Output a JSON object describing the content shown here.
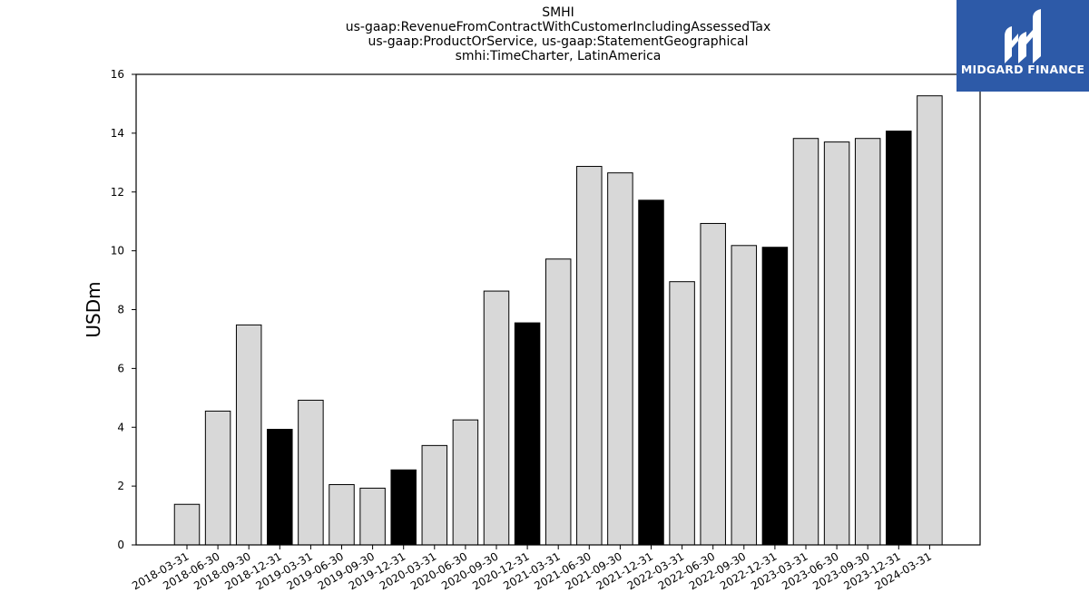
{
  "logo": {
    "text": "MIDGARD FINANCE",
    "background": "#2d5aa8",
    "foreground": "#ffffff"
  },
  "chart_data": {
    "type": "bar",
    "title_lines": [
      "SMHI",
      "us-gaap:RevenueFromContractWithCustomerIncludingAssessedTax",
      "us-gaap:ProductOrService, us-gaap:StatementGeographical",
      "smhi:TimeCharter, LatinAmerica"
    ],
    "xlabel": "",
    "ylabel": "USDm",
    "ylim": [
      0,
      16
    ],
    "yticks": [
      0,
      2,
      4,
      6,
      8,
      10,
      12,
      14,
      16
    ],
    "grid": false,
    "colors": {
      "quarter": "#d8d8d8",
      "year_end": "#000000",
      "edge": "#000000"
    },
    "categories": [
      "2018-03-31",
      "2018-06-30",
      "2018-09-30",
      "2018-12-31",
      "2019-03-31",
      "2019-06-30",
      "2019-09-30",
      "2019-12-31",
      "2020-03-31",
      "2020-06-30",
      "2020-09-30",
      "2020-12-31",
      "2021-03-31",
      "2021-06-30",
      "2021-09-30",
      "2021-12-31",
      "2022-03-31",
      "2022-06-30",
      "2022-09-30",
      "2022-12-31",
      "2023-03-31",
      "2023-06-30",
      "2023-09-30",
      "2023-12-31",
      "2024-03-31"
    ],
    "values": [
      1.38,
      4.55,
      7.48,
      3.93,
      4.92,
      2.05,
      1.93,
      2.55,
      3.38,
      4.25,
      8.63,
      7.55,
      9.72,
      12.87,
      12.65,
      11.72,
      8.95,
      10.93,
      10.18,
      10.12,
      13.82,
      13.7,
      13.82,
      14.07,
      15.27
    ],
    "year_end": [
      false,
      false,
      false,
      true,
      false,
      false,
      false,
      true,
      false,
      false,
      false,
      true,
      false,
      false,
      false,
      true,
      false,
      false,
      false,
      true,
      false,
      false,
      false,
      true,
      false
    ]
  }
}
